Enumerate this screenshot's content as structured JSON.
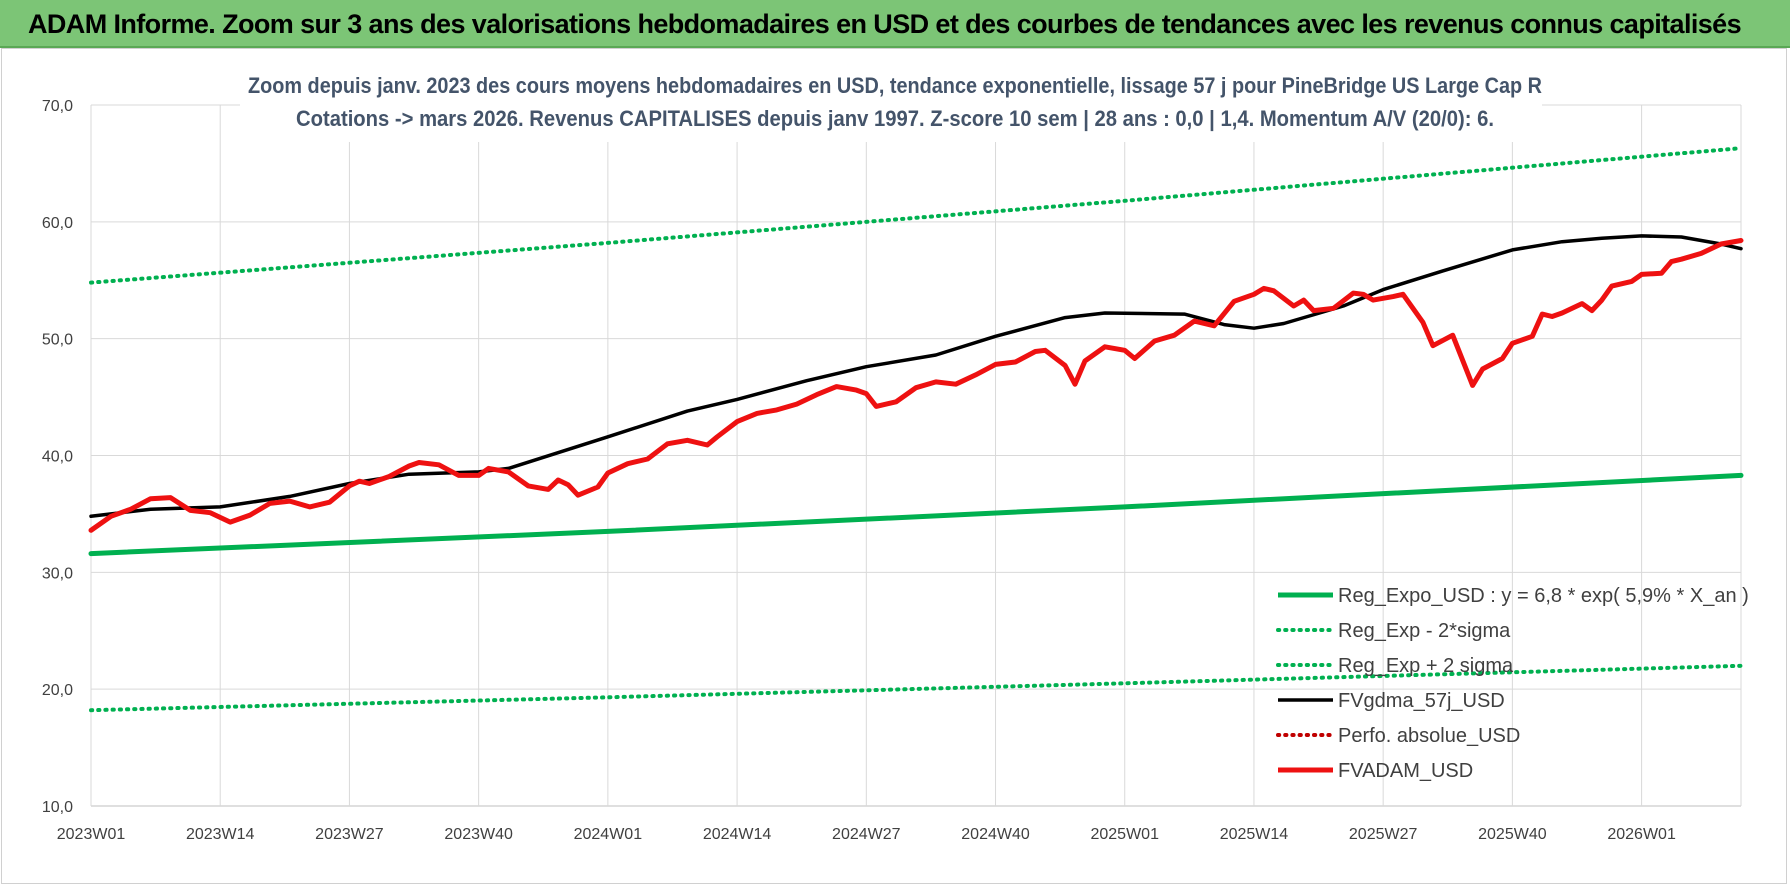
{
  "banner": {
    "title": "ADAM Informe. Zoom sur 3 ans des valorisations hebdomadaires en USD et des courbes de tendances avec les revenus connus capitalisés"
  },
  "chart_data": {
    "type": "line",
    "title": [
      "Zoom depuis janv. 2023 des cours moyens hebdomadaires en USD, tendance exponentielle, lissage 57 j pour PineBridge US Large Cap R",
      "Cotations -> mars 2026. Revenus CAPITALISES depuis janv 1997.  Z-score 10 sem | 28 ans : 0,0 | 1,4.  Momentum A/V (20/0): 6."
    ],
    "xlabel": "",
    "ylabel": "",
    "ylim": [
      10,
      70
    ],
    "yticks": [
      "10,0",
      "20,0",
      "30,0",
      "40,0",
      "50,0",
      "60,0",
      "70,0"
    ],
    "xlim": [
      0,
      166
    ],
    "xticks": [
      {
        "label": "2023W01",
        "x": 0
      },
      {
        "label": "2023W14",
        "x": 13
      },
      {
        "label": "2023W27",
        "x": 26
      },
      {
        "label": "2023W40",
        "x": 39
      },
      {
        "label": "2024W01",
        "x": 52
      },
      {
        "label": "2024W14",
        "x": 65
      },
      {
        "label": "2024W27",
        "x": 78
      },
      {
        "label": "2024W40",
        "x": 91
      },
      {
        "label": "2025W01",
        "x": 104
      },
      {
        "label": "2025W14",
        "x": 117
      },
      {
        "label": "2025W27",
        "x": 130
      },
      {
        "label": "2025W40",
        "x": 143
      },
      {
        "label": "2026W01",
        "x": 156
      }
    ],
    "grid": true,
    "legend_position": "bottom-right",
    "series": [
      {
        "name": "Reg_Expo_USD : y = 6,8 * exp( 5,9% *  X_an )",
        "color": "#00b050",
        "style": "solid-thick",
        "points": [
          [
            0,
            31.6
          ],
          [
            52,
            33.5
          ],
          [
            104,
            35.6
          ],
          [
            166,
            38.3
          ]
        ]
      },
      {
        "name": "Reg_Exp - 2*sigma",
        "color": "#00b050",
        "style": "dotted",
        "points": [
          [
            0,
            18.2
          ],
          [
            52,
            19.3
          ],
          [
            104,
            20.5
          ],
          [
            166,
            22.0
          ]
        ]
      },
      {
        "name": "Reg_Exp + 2 sigma",
        "color": "#00b050",
        "style": "dotted",
        "points": [
          [
            0,
            54.8
          ],
          [
            52,
            58.2
          ],
          [
            104,
            61.8
          ],
          [
            166,
            66.3
          ]
        ]
      },
      {
        "name": "FVgdma_57j_USD",
        "color": "#000000",
        "style": "solid",
        "points": [
          [
            0,
            34.8
          ],
          [
            6,
            35.4
          ],
          [
            13,
            35.6
          ],
          [
            20,
            36.5
          ],
          [
            26,
            37.6
          ],
          [
            32,
            38.4
          ],
          [
            39,
            38.6
          ],
          [
            42,
            38.9
          ],
          [
            52,
            41.6
          ],
          [
            60,
            43.8
          ],
          [
            65,
            44.8
          ],
          [
            72,
            46.4
          ],
          [
            78,
            47.6
          ],
          [
            85,
            48.6
          ],
          [
            91,
            50.2
          ],
          [
            98,
            51.8
          ],
          [
            102,
            52.2
          ],
          [
            110,
            52.1
          ],
          [
            114,
            51.2
          ],
          [
            117,
            50.9
          ],
          [
            120,
            51.3
          ],
          [
            126,
            52.8
          ],
          [
            130,
            54.2
          ],
          [
            136,
            55.8
          ],
          [
            143,
            57.6
          ],
          [
            148,
            58.3
          ],
          [
            152,
            58.6
          ],
          [
            156,
            58.8
          ],
          [
            160,
            58.7
          ],
          [
            164,
            58.1
          ],
          [
            166,
            57.7
          ]
        ]
      },
      {
        "name": "Perfo. absolue_USD",
        "color": "#c00000",
        "style": "dotted",
        "points": []
      },
      {
        "name": "FVADAM_USD",
        "color": "#ee1111",
        "style": "solid-thick",
        "points": [
          [
            0,
            33.6
          ],
          [
            2,
            34.8
          ],
          [
            4,
            35.4
          ],
          [
            6,
            36.3
          ],
          [
            8,
            36.4
          ],
          [
            10,
            35.3
          ],
          [
            12,
            35.1
          ],
          [
            14,
            34.3
          ],
          [
            16,
            34.9
          ],
          [
            18,
            35.9
          ],
          [
            20,
            36.1
          ],
          [
            22,
            35.6
          ],
          [
            24,
            36.0
          ],
          [
            26,
            37.4
          ],
          [
            27,
            37.8
          ],
          [
            28,
            37.6
          ],
          [
            30,
            38.2
          ],
          [
            32,
            39.1
          ],
          [
            33,
            39.4
          ],
          [
            35,
            39.2
          ],
          [
            37,
            38.3
          ],
          [
            39,
            38.3
          ],
          [
            40,
            38.9
          ],
          [
            42,
            38.6
          ],
          [
            44,
            37.4
          ],
          [
            46,
            37.1
          ],
          [
            47,
            37.9
          ],
          [
            48,
            37.5
          ],
          [
            49,
            36.6
          ],
          [
            51,
            37.3
          ],
          [
            52,
            38.5
          ],
          [
            54,
            39.3
          ],
          [
            56,
            39.7
          ],
          [
            58,
            41.0
          ],
          [
            60,
            41.3
          ],
          [
            62,
            40.9
          ],
          [
            63,
            41.6
          ],
          [
            65,
            42.9
          ],
          [
            67,
            43.6
          ],
          [
            69,
            43.9
          ],
          [
            71,
            44.4
          ],
          [
            73,
            45.2
          ],
          [
            75,
            45.9
          ],
          [
            77,
            45.6
          ],
          [
            78,
            45.3
          ],
          [
            79,
            44.2
          ],
          [
            81,
            44.6
          ],
          [
            83,
            45.8
          ],
          [
            85,
            46.3
          ],
          [
            87,
            46.1
          ],
          [
            89,
            46.9
          ],
          [
            91,
            47.8
          ],
          [
            93,
            48.0
          ],
          [
            95,
            48.9
          ],
          [
            96,
            49.0
          ],
          [
            98,
            47.7
          ],
          [
            99,
            46.1
          ],
          [
            100,
            48.1
          ],
          [
            102,
            49.3
          ],
          [
            104,
            49.0
          ],
          [
            105,
            48.3
          ],
          [
            107,
            49.8
          ],
          [
            109,
            50.3
          ],
          [
            111,
            51.5
          ],
          [
            113,
            51.1
          ],
          [
            115,
            53.2
          ],
          [
            117,
            53.8
          ],
          [
            118,
            54.3
          ],
          [
            119,
            54.1
          ],
          [
            121,
            52.8
          ],
          [
            122,
            53.3
          ],
          [
            123,
            52.4
          ],
          [
            125,
            52.6
          ],
          [
            127,
            53.9
          ],
          [
            128,
            53.8
          ],
          [
            129,
            53.3
          ],
          [
            131,
            53.6
          ],
          [
            132,
            53.8
          ],
          [
            134,
            51.4
          ],
          [
            135,
            49.4
          ],
          [
            137,
            50.3
          ],
          [
            139,
            46.0
          ],
          [
            140,
            47.4
          ],
          [
            142,
            48.3
          ],
          [
            143,
            49.6
          ],
          [
            145,
            50.2
          ],
          [
            146,
            52.1
          ],
          [
            147,
            51.9
          ],
          [
            148,
            52.2
          ],
          [
            150,
            53.0
          ],
          [
            151,
            52.4
          ],
          [
            152,
            53.3
          ],
          [
            153,
            54.5
          ],
          [
            155,
            54.9
          ],
          [
            156,
            55.5
          ],
          [
            158,
            55.6
          ],
          [
            159,
            56.6
          ],
          [
            160,
            56.8
          ],
          [
            162,
            57.3
          ],
          [
            164,
            58.1
          ],
          [
            166,
            58.4
          ]
        ]
      }
    ]
  }
}
